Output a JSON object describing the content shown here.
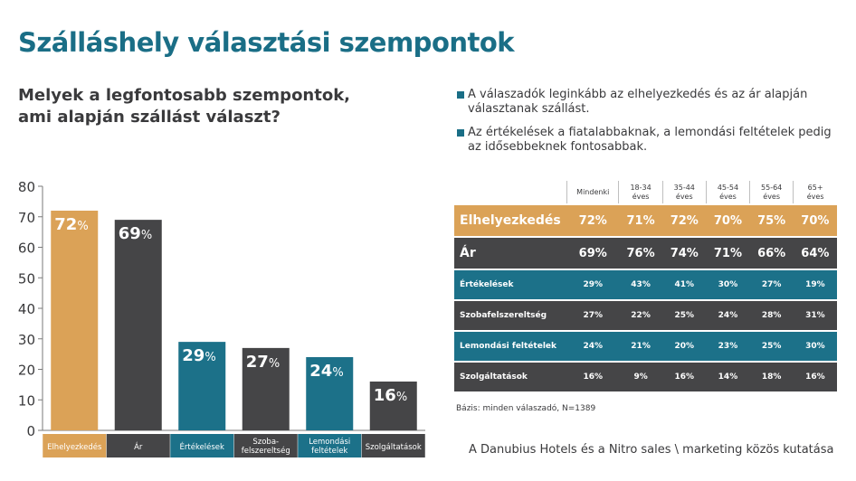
{
  "title": "Szálláshely választási szempontok",
  "question": {
    "line1": "Melyek a legfontosabb szempontok,",
    "line2": "ami alapján szállást választ?"
  },
  "findings": [
    {
      "line1": "A válaszadók leginkább az elhelyezkedés és az ár alapján",
      "line2": "választanak szállást."
    },
    {
      "line1": "Az értékelések a fiatalabbaknak, a lemondási feltételek pedig",
      "line2": "az idősebbeknek fontosabbak."
    }
  ],
  "chart_data": {
    "type": "bar",
    "categories": [
      "Elhelyezkedés",
      "Ár",
      "Értékelések",
      "Szoba-felszereltség",
      "Lemondási feltételek",
      "Szolgáltatások"
    ],
    "category_lines": [
      [
        "Elhelyezkedés"
      ],
      [
        "Ár"
      ],
      [
        "Értékelések"
      ],
      [
        "Szoba-",
        "felszereltség"
      ],
      [
        "Lemondási",
        "feltételek"
      ],
      [
        "Szolgáltatások"
      ]
    ],
    "values": [
      72,
      69,
      29,
      27,
      24,
      16
    ],
    "value_suffix": "%",
    "ylim": [
      0,
      80
    ],
    "yticks": [
      0,
      10,
      20,
      30,
      40,
      50,
      60,
      70,
      80
    ],
    "colors": [
      "#dba257",
      "#454547",
      "#1c7189",
      "#454547",
      "#1c7189",
      "#454547"
    ],
    "grid": false
  },
  "table": {
    "headers": [
      [
        "Mindenki"
      ],
      [
        "18-34",
        "éves"
      ],
      [
        "35-44",
        "éves"
      ],
      [
        "45-54",
        "éves"
      ],
      [
        "55-64",
        "éves"
      ],
      [
        "65+",
        "éves"
      ]
    ],
    "rows": [
      {
        "label": "Elhelyezkedés",
        "values": [
          "72%",
          "71%",
          "72%",
          "70%",
          "75%",
          "70%"
        ],
        "color": "#dba257",
        "size": "big"
      },
      {
        "label": "Ár",
        "values": [
          "69%",
          "76%",
          "74%",
          "71%",
          "66%",
          "64%"
        ],
        "color": "#454547",
        "size": "big"
      },
      {
        "label": "Értékelések",
        "values": [
          "29%",
          "43%",
          "41%",
          "30%",
          "27%",
          "19%"
        ],
        "color": "#1c7189",
        "size": "small"
      },
      {
        "label": "Szobafelszereltség",
        "values": [
          "27%",
          "22%",
          "25%",
          "24%",
          "28%",
          "31%"
        ],
        "color": "#454547",
        "size": "small"
      },
      {
        "label": "Lemondási feltételek",
        "values": [
          "24%",
          "21%",
          "20%",
          "23%",
          "25%",
          "30%"
        ],
        "color": "#1c7189",
        "size": "small"
      },
      {
        "label": "Szolgáltatások",
        "values": [
          "16%",
          "9%",
          "16%",
          "14%",
          "18%",
          "16%"
        ],
        "color": "#454547",
        "size": "small"
      }
    ]
  },
  "basis": "Bázis: minden válaszadó, N=1389",
  "source": "A Danubius Hotels és a Nitro sales \\ marketing közös kutatása"
}
